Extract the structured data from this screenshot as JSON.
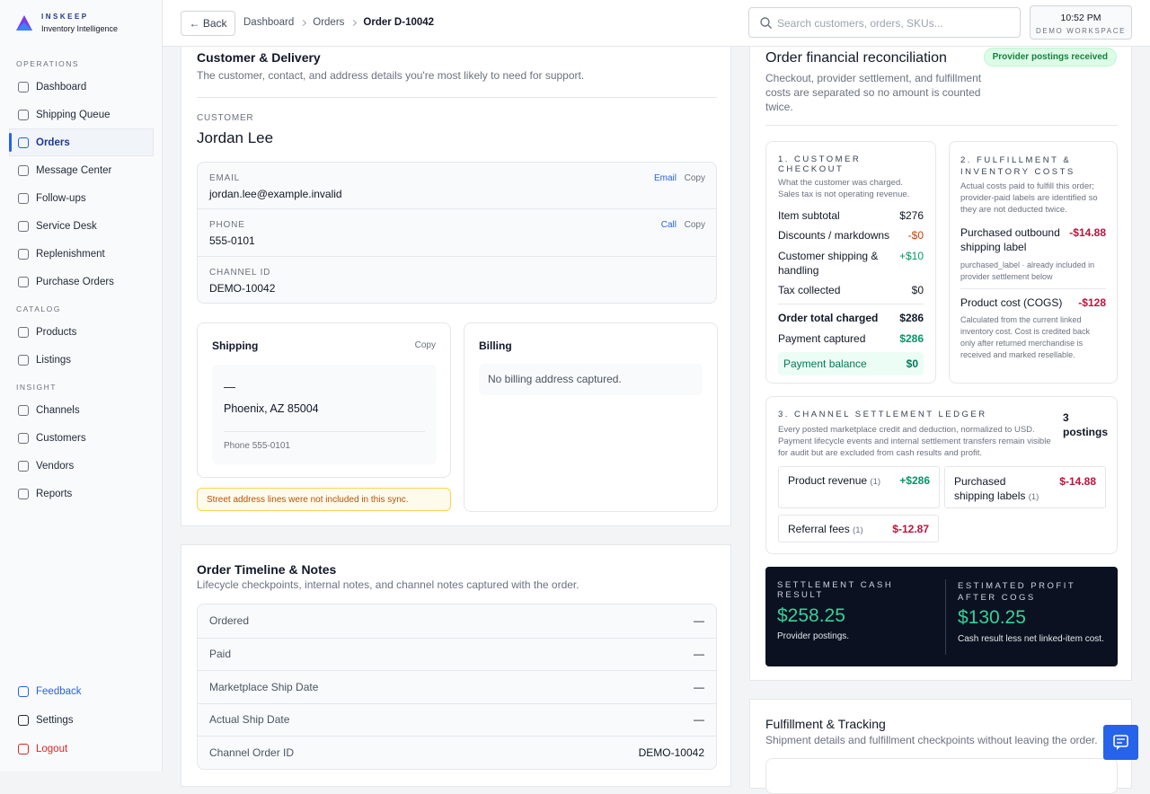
{
  "sidebar": {
    "brand": {
      "name": "INSKEEP",
      "tagline": "Inventory Intelligence"
    },
    "sections": [
      {
        "label": "OPERATIONS",
        "items": [
          "Dashboard",
          "Shipping Queue",
          "Orders",
          "Message Center",
          "Follow-ups",
          "Service Desk",
          "Replenishment",
          "Purchase Orders"
        ]
      },
      {
        "label": "CATALOG",
        "items": [
          "Products",
          "Listings"
        ]
      },
      {
        "label": "INSIGHT",
        "items": [
          "Channels",
          "Customers",
          "Vendors",
          "Reports"
        ]
      }
    ],
    "footer": [
      "Feedback",
      "Settings",
      "Logout"
    ]
  },
  "topbar": {
    "back": "← Back",
    "breadcrumb": [
      "Dashboard",
      "Orders",
      "Order D-10042"
    ],
    "search_placeholder": "Search customers, orders, SKUs...",
    "time": "10:52 PM",
    "workspace": "DEMO WORKSPACE"
  },
  "customer_delivery": {
    "title": "Customer & Delivery",
    "subtitle": "The customer, contact, and address details you're most likely to need for support.",
    "customer_label": "CUSTOMER",
    "customer_name": "Jordan Lee",
    "contacts": [
      {
        "label": "EMAIL",
        "value": "jordan.lee@example.invalid",
        "actions": [
          "Email",
          "Copy"
        ]
      },
      {
        "label": "PHONE",
        "value": "555-0101",
        "actions": [
          "Call",
          "Copy"
        ]
      },
      {
        "label": "CHANNEL ID",
        "value": "DEMO-10042"
      }
    ],
    "shipping": {
      "title": "Shipping",
      "action": "Copy",
      "name": "—",
      "city": "Phoenix, AZ 85004",
      "phone": "Phone 555-0101",
      "warning": "Street address lines were not included in this sync."
    },
    "billing": {
      "title": "Billing",
      "empty": "No billing address captured."
    }
  },
  "timeline": {
    "title": "Order Timeline & Notes",
    "subtitle": "Lifecycle checkpoints, internal notes, and channel notes captured with the order.",
    "rows": [
      [
        "Ordered",
        "—"
      ],
      [
        "Paid",
        "—"
      ],
      [
        "Marketplace Ship Date",
        "—"
      ],
      [
        "Actual Ship Date",
        "—"
      ],
      [
        "Channel Order ID",
        "DEMO-10042"
      ]
    ]
  },
  "reconciliation": {
    "title": "Order financial reconciliation",
    "badge": "Provider postings received",
    "subtitle": "Checkout, provider settlement, and fulfillment costs are separated so no amount is counted twice.",
    "checkout": {
      "title": "1. CUSTOMER CHECKOUT",
      "note": "What the customer was charged. Sales tax is not operating revenue.",
      "rows": [
        [
          "Item subtotal",
          "$276"
        ],
        [
          "Discounts / markdowns",
          "-$0"
        ],
        [
          "Customer shipping & handling",
          "+$10"
        ],
        [
          "Tax collected",
          "$0"
        ]
      ],
      "total": [
        "Order total charged",
        "$286"
      ],
      "captured": [
        "Payment captured",
        "$286"
      ],
      "balance": [
        "Payment balance",
        "$0"
      ]
    },
    "costs": {
      "title": "2. FULFILLMENT & INVENTORY COSTS",
      "note": "Actual costs paid to fulfill this order; provider-paid labels are identified so they are not deducted twice.",
      "items": [
        {
          "label": "Purchased outbound shipping label",
          "value": "-$14.88",
          "note": "purchased_label · already included in provider settlement below"
        },
        {
          "label": "Product cost (COGS)",
          "value": "-$128",
          "note": "Calculated from the current linked inventory cost. Cost is credited back only after returned merchandise is received and marked resellable."
        }
      ]
    },
    "ledger": {
      "title": "3. CHANNEL SETTLEMENT LEDGER",
      "note": "Every posted marketplace credit and deduction, normalized to USD. Payment lifecycle events and internal settlement transfers remain visible for audit but are excluded from cash results and profit.",
      "count": "3 postings",
      "entries": [
        {
          "label": "Product revenue",
          "count": "(1)",
          "value": "+$286"
        },
        {
          "label": "Purchased shipping labels",
          "count": "(1)",
          "value": "$-14.88"
        },
        {
          "label": "Referral fees",
          "count": "(1)",
          "value": "$-12.87"
        }
      ]
    },
    "results": [
      {
        "label": "SETTLEMENT CASH RESULT",
        "value": "$258.25",
        "note": "Provider postings."
      },
      {
        "label": "ESTIMATED PROFIT AFTER COGS",
        "value": "$130.25",
        "note": "Cash result less net linked-item cost."
      }
    ]
  },
  "fulfillment": {
    "title": "Fulfillment & Tracking",
    "subtitle": "Shipment details and fulfillment checkpoints without leaving the order."
  }
}
